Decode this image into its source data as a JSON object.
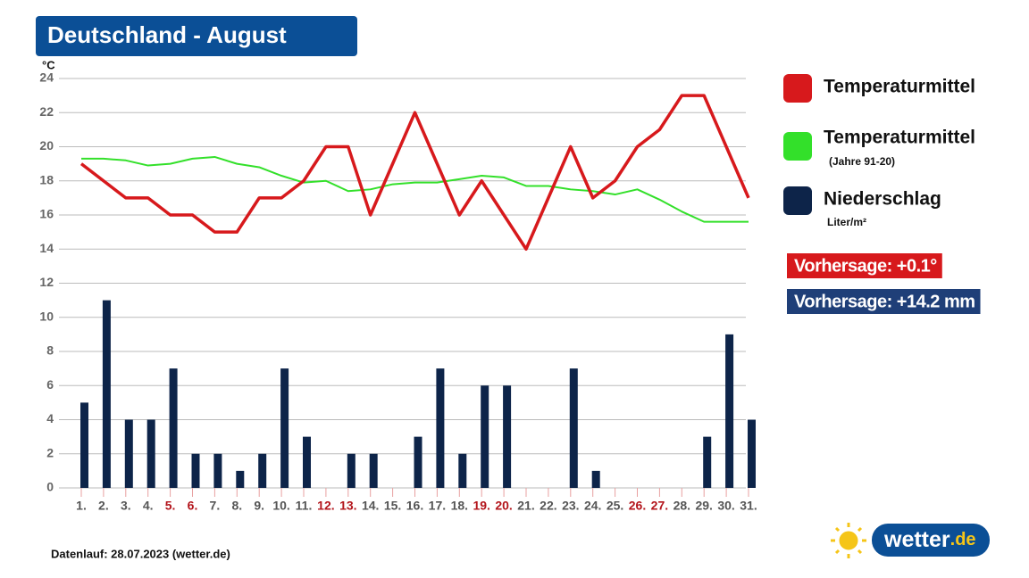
{
  "chart_data": {
    "type": "combo",
    "title": "Deutschland - August",
    "y_label": "°C",
    "categories": [
      "1.",
      "2.",
      "3.",
      "4.",
      "5.",
      "6.",
      "7.",
      "8.",
      "9.",
      "10.",
      "11.",
      "12.",
      "13.",
      "14.",
      "15.",
      "16.",
      "17.",
      "18.",
      "19.",
      "20.",
      "21.",
      "22.",
      "23.",
      "24.",
      "25.",
      "26.",
      "27.",
      "28.",
      "29.",
      "30.",
      "31."
    ],
    "category_colors": [
      "#555",
      "#555",
      "#555",
      "#555",
      "#b3141b",
      "#b3141b",
      "#555",
      "#555",
      "#555",
      "#555",
      "#555",
      "#b3141b",
      "#b3141b",
      "#555",
      "#555",
      "#555",
      "#555",
      "#555",
      "#b3141b",
      "#b3141b",
      "#555",
      "#555",
      "#555",
      "#555",
      "#555",
      "#b3141b",
      "#b3141b",
      "#555",
      "#555",
      "#555",
      "#555"
    ],
    "series": [
      {
        "name": "Temperaturmittel",
        "type": "line",
        "color": "#d7191c",
        "values": [
          19,
          18,
          17,
          17,
          16,
          16,
          15,
          15,
          17,
          17,
          18,
          20,
          20,
          16,
          19,
          22,
          19,
          16,
          18,
          16,
          14,
          17,
          20,
          17,
          18,
          20,
          21,
          23,
          23,
          20,
          17
        ]
      },
      {
        "name": "Temperaturmittel",
        "note": "(Jahre 91-20)",
        "type": "line",
        "color": "#33e02a",
        "values": [
          19.3,
          19.3,
          19.2,
          18.9,
          19.0,
          19.3,
          19.4,
          19.0,
          18.8,
          18.3,
          17.9,
          18.0,
          17.4,
          17.5,
          17.8,
          17.9,
          17.9,
          18.1,
          18.3,
          18.2,
          17.7,
          17.7,
          17.5,
          17.4,
          17.2,
          17.5,
          16.9,
          16.2,
          15.6,
          15.6,
          15.6
        ]
      },
      {
        "name": "Niederschlag",
        "note": "Liter/m²",
        "type": "bar",
        "color": "#0d2449",
        "values": [
          5,
          11,
          4,
          4,
          7,
          2,
          2,
          1,
          2,
          7,
          3,
          0,
          2,
          2,
          0,
          3,
          7,
          2,
          6,
          6,
          0,
          0,
          7,
          1,
          0,
          0,
          0,
          0,
          3,
          9,
          4
        ]
      }
    ],
    "ylim": [
      0,
      24
    ],
    "yticks": [
      0,
      2,
      4,
      6,
      8,
      10,
      12,
      14,
      16,
      18,
      20,
      22,
      24
    ],
    "grid": true,
    "annotations": [
      {
        "text": "Vorhersage: +0.1°",
        "color": "#d7191c"
      },
      {
        "text": "Vorhersage: +14.2 mm",
        "color": "#1f3f78"
      }
    ],
    "footer": "Datenlauf: 28.07.2023 (wetter.de)",
    "logo": {
      "name": "wetter",
      "suffix": ".de"
    }
  }
}
